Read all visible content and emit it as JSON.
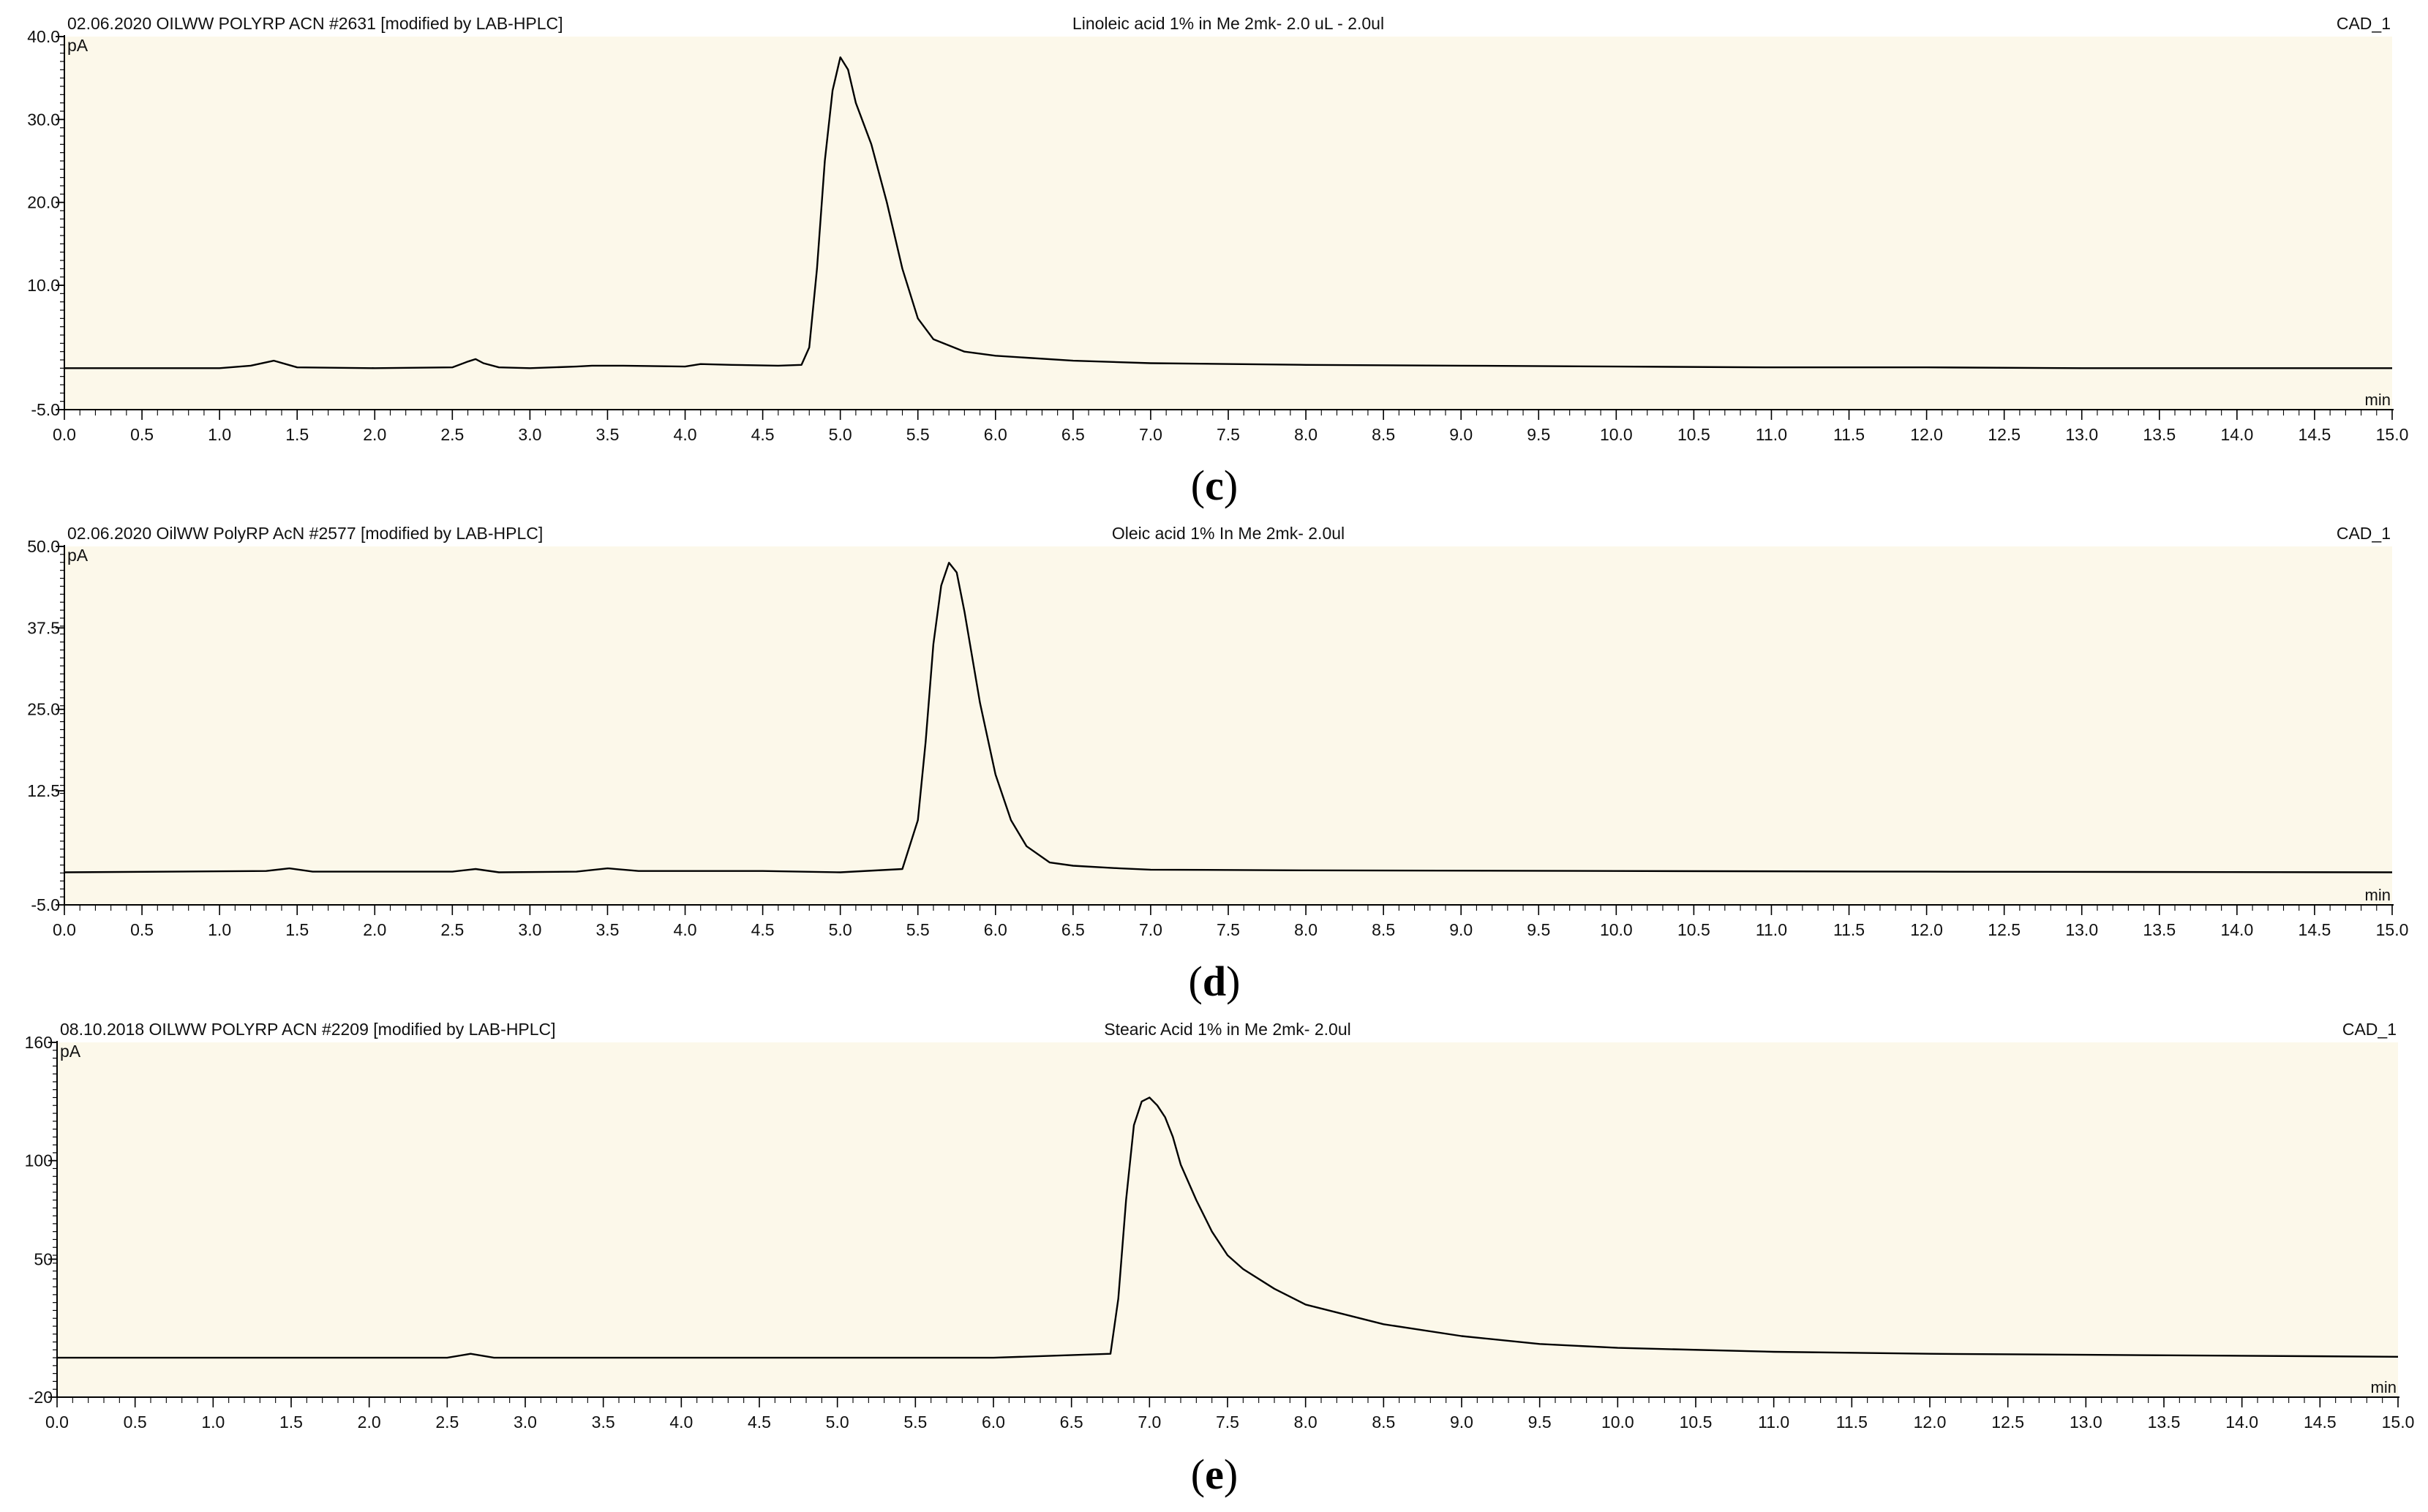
{
  "chart_data": [
    {
      "type": "line",
      "panel_label": "c",
      "header_left": "02.06.2020 OILWW POLYRP ACN #2631 [modified by LAB-HPLC]",
      "title": "Linoleic acid 1% in Me 2mk- 2.0 uL - 2.0ul",
      "header_right": "CAD_1",
      "ylabel": "pA",
      "xlabel": "min",
      "xlim": [
        0.0,
        15.0
      ],
      "ylim": [
        -5.0,
        40.0
      ],
      "y_tick_labels": [
        "40.0",
        "30.0",
        "20.0",
        "10.0",
        "-5.0"
      ],
      "y_tick_values": [
        40,
        30,
        20,
        10,
        -5
      ],
      "x_tick_labels": [
        "0.0",
        "0.5",
        "1.0",
        "1.5",
        "2.0",
        "2.5",
        "3.0",
        "3.5",
        "4.0",
        "4.5",
        "5.0",
        "5.5",
        "6.0",
        "6.5",
        "7.0",
        "7.5",
        "8.0",
        "8.5",
        "9.0",
        "9.5",
        "10.0",
        "10.5",
        "11.0",
        "11.5",
        "12.0",
        "12.5",
        "13.0",
        "13.5",
        "14.0",
        "14.5",
        "15.0"
      ],
      "background_color": "#fcf8ea",
      "line_color": "#000000",
      "series": [
        {
          "x": [
            0.0,
            1.0,
            1.2,
            1.35,
            1.5,
            2.0,
            2.5,
            2.6,
            2.65,
            2.7,
            2.8,
            3.0,
            3.3,
            3.4,
            3.6,
            4.0,
            4.1,
            4.3,
            4.6,
            4.75,
            4.8,
            4.85,
            4.9,
            4.95,
            5.0,
            5.05,
            5.1,
            5.2,
            5.3,
            5.4,
            5.5,
            5.6,
            5.8,
            6.0,
            6.5,
            7.0,
            8.0,
            9.0,
            10.0,
            11.0,
            12.0,
            13.0,
            14.0,
            15.0
          ],
          "y": [
            0.0,
            0.0,
            0.3,
            0.9,
            0.1,
            0.0,
            0.1,
            0.8,
            1.1,
            0.6,
            0.1,
            0.0,
            0.2,
            0.3,
            0.3,
            0.2,
            0.5,
            0.4,
            0.3,
            0.4,
            2.5,
            12.0,
            25.0,
            33.5,
            37.5,
            36.0,
            32.0,
            27.0,
            20.0,
            12.0,
            6.0,
            3.5,
            2.0,
            1.5,
            0.9,
            0.6,
            0.4,
            0.3,
            0.2,
            0.1,
            0.1,
            0.0,
            0.0,
            0.0
          ]
        }
      ]
    },
    {
      "type": "line",
      "panel_label": "d",
      "header_left": "02.06.2020 OilWW PolyRP AcN #2577 [modified by LAB-HPLC]",
      "title": "Oleic acid 1% In Me 2mk- 2.0ul",
      "header_right": "CAD_1",
      "ylabel": "pA",
      "xlabel": "min",
      "xlim": [
        0.0,
        15.0
      ],
      "ylim": [
        -5.0,
        50.0
      ],
      "y_tick_labels": [
        "50.0",
        "37.5",
        "25.0",
        "12.5",
        "-5.0"
      ],
      "y_tick_values": [
        50,
        37.5,
        25,
        12.5,
        -5
      ],
      "x_tick_labels": [
        "0.0",
        "0.5",
        "1.0",
        "1.5",
        "2.0",
        "2.5",
        "3.0",
        "3.5",
        "4.0",
        "4.5",
        "5.0",
        "5.5",
        "6.0",
        "6.5",
        "7.0",
        "7.5",
        "8.0",
        "8.5",
        "9.0",
        "9.5",
        "10.0",
        "10.5",
        "11.0",
        "11.5",
        "12.0",
        "12.5",
        "13.0",
        "13.5",
        "14.0",
        "14.5",
        "15.0"
      ],
      "background_color": "#fcf8ea",
      "line_color": "#000000",
      "series": [
        {
          "x": [
            0.0,
            1.3,
            1.45,
            1.6,
            2.5,
            2.65,
            2.8,
            3.3,
            3.5,
            3.7,
            4.5,
            5.0,
            5.4,
            5.5,
            5.55,
            5.6,
            5.65,
            5.7,
            5.75,
            5.8,
            5.9,
            6.0,
            6.1,
            6.2,
            6.35,
            6.5,
            6.8,
            7.0,
            8.0,
            10.0,
            12.0,
            15.0
          ],
          "y": [
            0.0,
            0.2,
            0.6,
            0.1,
            0.1,
            0.5,
            0.0,
            0.1,
            0.6,
            0.2,
            0.2,
            0.0,
            0.5,
            8.0,
            20.0,
            35.0,
            44.0,
            47.5,
            46.0,
            40.0,
            26.0,
            15.0,
            8.0,
            4.0,
            1.5,
            1.0,
            0.6,
            0.4,
            0.3,
            0.2,
            0.1,
            0.0
          ]
        }
      ]
    },
    {
      "type": "line",
      "panel_label": "e",
      "header_left": "08.10.2018 OILWW POLYRP ACN #2209 [modified by LAB-HPLC]",
      "title": "Stearic Acid 1% in Me 2mk- 2.0ul",
      "header_right": "CAD_1",
      "ylabel": "pA",
      "xlabel": "min",
      "xlim": [
        0.0,
        15.0
      ],
      "ylim": [
        -20,
        160
      ],
      "y_tick_labels": [
        "160",
        "100",
        "50",
        "-20"
      ],
      "y_tick_values": [
        160,
        100,
        50,
        -20
      ],
      "x_tick_labels": [
        "0.0",
        "0.5",
        "1.0",
        "1.5",
        "2.0",
        "2.5",
        "3.0",
        "3.5",
        "4.0",
        "4.5",
        "5.0",
        "5.5",
        "6.0",
        "6.5",
        "7.0",
        "7.5",
        "8.0",
        "8.5",
        "9.0",
        "9.5",
        "10.0",
        "10.5",
        "11.0",
        "11.5",
        "12.0",
        "12.5",
        "13.0",
        "13.5",
        "14.0",
        "14.5",
        "15.0"
      ],
      "background_color": "#fcf8ea",
      "line_color": "#000000",
      "series": [
        {
          "x": [
            0.0,
            2.5,
            2.65,
            2.8,
            4.0,
            6.0,
            6.75,
            6.8,
            6.85,
            6.9,
            6.95,
            7.0,
            7.05,
            7.1,
            7.15,
            7.2,
            7.3,
            7.4,
            7.5,
            7.6,
            7.8,
            8.0,
            8.5,
            9.0,
            9.5,
            10.0,
            11.0,
            12.0,
            13.0,
            14.0,
            15.0
          ],
          "y": [
            0.0,
            0.0,
            2.0,
            0.0,
            0.0,
            0.0,
            2.0,
            30.0,
            80.0,
            118.0,
            130.0,
            132.0,
            128.0,
            122.0,
            112.0,
            98.0,
            80.0,
            64.0,
            52.0,
            45.0,
            35.0,
            27.0,
            17.0,
            11.0,
            7.0,
            5.0,
            3.0,
            2.0,
            1.5,
            1.0,
            0.5
          ]
        }
      ]
    }
  ]
}
